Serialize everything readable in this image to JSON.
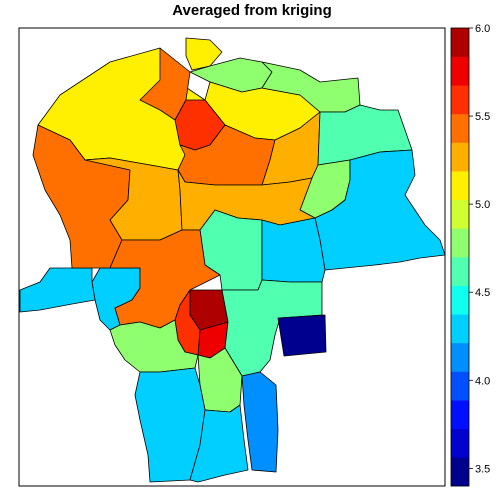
{
  "title": "Averaged from kriging",
  "palette": [
    "#00008F",
    "#0000CF",
    "#000FFF",
    "#0050FF",
    "#008FFF",
    "#00CFFF",
    "#10FFEF",
    "#50FFAF",
    "#8FFF70",
    "#CFFF30",
    "#FFEF00",
    "#FFAF00",
    "#FF7000",
    "#FF3000",
    "#EF0000",
    "#AF0000"
  ],
  "legend": {
    "min": 3.4,
    "max": 6.0,
    "ticks": [
      "3.5",
      "4.0",
      "4.5",
      "5.0",
      "5.5",
      "6.0"
    ],
    "tick_values": [
      3.5,
      4.0,
      4.5,
      5.0,
      5.5,
      6.0
    ]
  },
  "regions": [
    {
      "id": "r-nw-large",
      "value": 5.05
    },
    {
      "id": "r-west-orange",
      "value": 5.45
    },
    {
      "id": "r-west-mid",
      "value": 5.35
    },
    {
      "id": "r-north-strip",
      "value": 5.45
    },
    {
      "id": "r-north-pale",
      "value": 5.15
    },
    {
      "id": "r-north-green",
      "value": 4.75
    },
    {
      "id": "r-north-tip",
      "value": 5.05
    },
    {
      "id": "r-red-orange",
      "value": 5.65
    },
    {
      "id": "r-center-orange",
      "value": 5.45
    },
    {
      "id": "r-center-yellow",
      "value": 5.2
    },
    {
      "id": "r-ne-green",
      "value": 4.75
    },
    {
      "id": "r-ne-cyan",
      "value": 4.55
    },
    {
      "id": "r-east-blue",
      "value": 4.3
    },
    {
      "id": "r-east-green",
      "value": 4.75
    },
    {
      "id": "r-east-yellow",
      "value": 5.2
    },
    {
      "id": "r-center-cyan",
      "value": 4.55
    },
    {
      "id": "r-south-orange",
      "value": 5.45
    },
    {
      "id": "r-dark-red",
      "value": 5.95
    },
    {
      "id": "r-red-south",
      "value": 5.8
    },
    {
      "id": "r-south-red-orange",
      "value": 5.65
    },
    {
      "id": "r-sw-green",
      "value": 4.75
    },
    {
      "id": "r-sw-cyan",
      "value": 4.35
    },
    {
      "id": "r-south-green",
      "value": 4.75
    },
    {
      "id": "r-south-blue-w",
      "value": 4.3
    },
    {
      "id": "r-south-blue-c",
      "value": 4.3
    },
    {
      "id": "r-south-blue-e",
      "value": 4.1
    },
    {
      "id": "r-se-cyan",
      "value": 4.55
    },
    {
      "id": "r-navy",
      "value": 3.45
    },
    {
      "id": "r-mid-blue",
      "value": 4.3
    },
    {
      "id": "r-west-tail",
      "value": 4.3
    }
  ]
}
